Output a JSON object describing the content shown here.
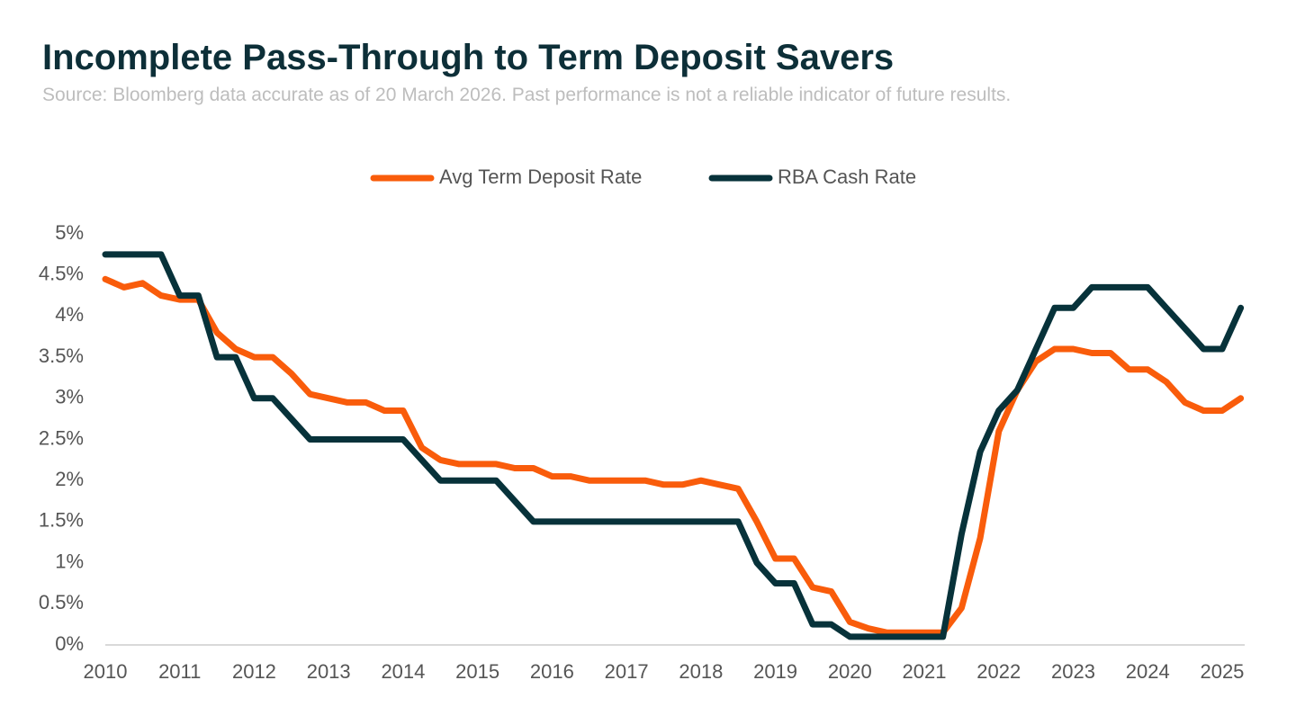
{
  "chart_data": {
    "type": "line",
    "title": "Incomplete Pass-Through to Term Deposit Savers",
    "subtitle": "Source: Bloomberg data accurate as of 20 March 2026. Past performance is not a reliable indicator of future results.",
    "x": [
      2010,
      2010.25,
      2010.5,
      2010.75,
      2011,
      2011.25,
      2011.5,
      2011.75,
      2012,
      2012.25,
      2012.5,
      2012.75,
      2013,
      2013.25,
      2013.5,
      2013.75,
      2014,
      2014.25,
      2014.5,
      2014.75,
      2015,
      2015.25,
      2015.5,
      2015.75,
      2016,
      2016.25,
      2016.5,
      2016.75,
      2017,
      2017.25,
      2017.5,
      2017.75,
      2018,
      2018.25,
      2018.5,
      2018.75,
      2019,
      2019.25,
      2019.5,
      2019.75,
      2020,
      2020.25,
      2020.5,
      2020.75,
      2021,
      2021.25,
      2021.5,
      2021.75,
      2022,
      2022.25,
      2022.5,
      2022.75,
      2023,
      2023.25,
      2023.5,
      2023.75,
      2024,
      2024.25,
      2024.5,
      2024.75,
      2025,
      2025.25
    ],
    "series": [
      {
        "name": "Avg Term Deposit Rate",
        "color": "#f95c0b",
        "values": [
          4.45,
          4.35,
          4.4,
          4.25,
          4.2,
          4.2,
          3.8,
          3.6,
          3.5,
          3.5,
          3.3,
          3.05,
          3.0,
          2.95,
          2.95,
          2.85,
          2.85,
          2.4,
          2.25,
          2.2,
          2.2,
          2.2,
          2.15,
          2.15,
          2.05,
          2.05,
          2.0,
          2.0,
          2.0,
          2.0,
          1.95,
          1.95,
          2.0,
          1.95,
          1.9,
          1.5,
          1.05,
          1.05,
          0.7,
          0.65,
          0.28,
          0.2,
          0.15,
          0.15,
          0.15,
          0.15,
          0.45,
          1.3,
          2.6,
          3.1,
          3.45,
          3.6,
          3.6,
          3.55,
          3.55,
          3.35,
          3.35,
          3.2,
          2.95,
          2.85,
          2.85,
          3.0
        ]
      },
      {
        "name": "RBA Cash Rate",
        "color": "#07323a",
        "values": [
          4.75,
          4.75,
          4.75,
          4.75,
          4.25,
          4.25,
          3.5,
          3.5,
          3.0,
          3.0,
          2.75,
          2.5,
          2.5,
          2.5,
          2.5,
          2.5,
          2.5,
          2.25,
          2.0,
          2.0,
          2.0,
          2.0,
          1.75,
          1.5,
          1.5,
          1.5,
          1.5,
          1.5,
          1.5,
          1.5,
          1.5,
          1.5,
          1.5,
          1.5,
          1.5,
          1.0,
          0.75,
          0.75,
          0.25,
          0.25,
          0.1,
          0.1,
          0.1,
          0.1,
          0.1,
          0.1,
          1.35,
          2.35,
          2.85,
          3.1,
          3.6,
          4.1,
          4.1,
          4.35,
          4.35,
          4.35,
          4.35,
          4.1,
          3.85,
          3.6,
          3.6,
          4.1
        ]
      }
    ],
    "xlim": [
      2010,
      2025.3
    ],
    "xticks": [
      2010,
      2011,
      2012,
      2013,
      2014,
      2015,
      2016,
      2017,
      2018,
      2019,
      2020,
      2021,
      2022,
      2023,
      2024,
      2025
    ],
    "ylim": [
      0,
      5
    ],
    "yticks": [
      {
        "value": 0,
        "label": "0%"
      },
      {
        "value": 0.5,
        "label": "0.5%"
      },
      {
        "value": 1,
        "label": "1%"
      },
      {
        "value": 1.5,
        "label": "1.5%"
      },
      {
        "value": 2,
        "label": "2%"
      },
      {
        "value": 2.5,
        "label": "2.5%"
      },
      {
        "value": 3,
        "label": "3%"
      },
      {
        "value": 3.5,
        "label": "3.5%"
      },
      {
        "value": 4,
        "label": "4%"
      },
      {
        "value": 4.5,
        "label": "4.5%"
      },
      {
        "value": 5,
        "label": "5%"
      }
    ]
  }
}
